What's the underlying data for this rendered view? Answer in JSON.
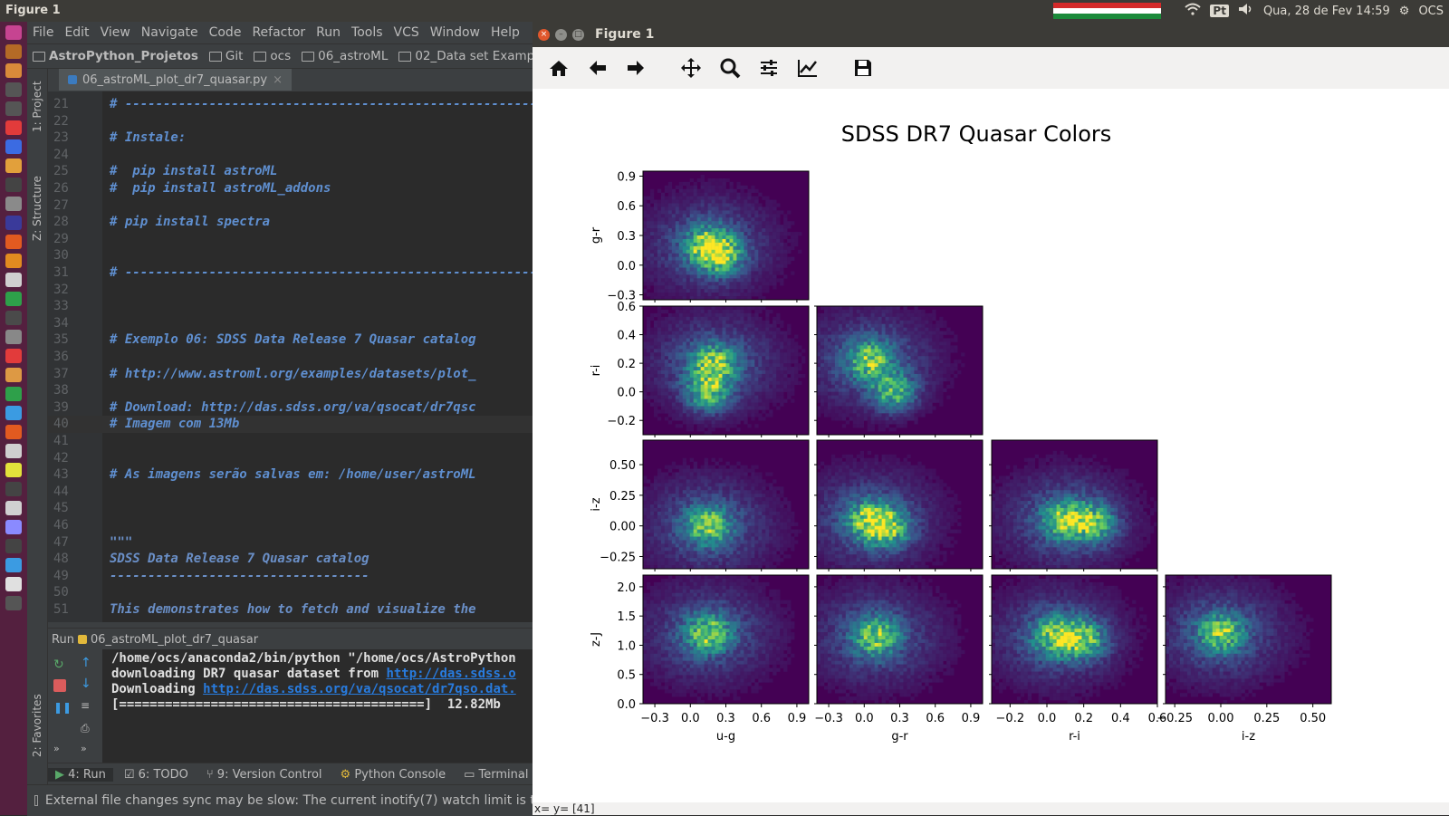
{
  "top_panel": {
    "app_title": "Figure 1",
    "lang": "Pt",
    "datetime": "Qua, 28 de Fev 14:59",
    "user": "OCS",
    "flag_colors": [
      "#d42a2a",
      "#ffffff",
      "#1b8a3a"
    ]
  },
  "launcher": {
    "icon_colors": [
      "#c64491",
      "#b46a26",
      "#d98a3a",
      "#555",
      "#555",
      "#e23b3b",
      "#3b6be2",
      "#e2a03b",
      "#444",
      "#8a8a8a",
      "#3a3a9a",
      "#e25a20",
      "#e28a20",
      "#d0d0d0",
      "#2ea04a",
      "#4a4a4a",
      "#888",
      "#e23b3b",
      "#d94",
      "#2ea04a",
      "#3b9be2",
      "#e25a20",
      "#cfcfcf",
      "#e2e23b",
      "#444",
      "#d0d0d0",
      "#8a8aff",
      "#444",
      "#3b9be2",
      "#e0e0e0",
      "#555"
    ]
  },
  "ide": {
    "menu": [
      "File",
      "Edit",
      "View",
      "Navigate",
      "Code",
      "Refactor",
      "Run",
      "Tools",
      "VCS",
      "Window",
      "Help"
    ],
    "breadcrumb": [
      "AstroPython_Projetos",
      "Git",
      "ocs",
      "06_astroML",
      "02_Data set Examp"
    ],
    "side_labels": {
      "project": "1: Project",
      "structure": "Z: Structure",
      "favorites": "2: Favorites"
    },
    "tab_name": "06_astroML_plot_dr7_quasar.py",
    "code_lines": [
      {
        "n": "21",
        "text": "# ----------------------------------------------------------"
      },
      {
        "n": "22",
        "text": ""
      },
      {
        "n": "23",
        "text": "# Instale:"
      },
      {
        "n": "24",
        "text": ""
      },
      {
        "n": "25",
        "text": "#  pip install astroML"
      },
      {
        "n": "26",
        "text": "#  pip install astroML_addons"
      },
      {
        "n": "27",
        "text": ""
      },
      {
        "n": "28",
        "text": "# pip install spectra"
      },
      {
        "n": "29",
        "text": ""
      },
      {
        "n": "30",
        "text": ""
      },
      {
        "n": "31",
        "text": "# ----------------------------------------------------------"
      },
      {
        "n": "32",
        "text": ""
      },
      {
        "n": "33",
        "text": ""
      },
      {
        "n": "34",
        "text": ""
      },
      {
        "n": "35",
        "text": "# Exemplo 06: SDSS Data Release 7 Quasar catalog"
      },
      {
        "n": "36",
        "text": ""
      },
      {
        "n": "37",
        "text": "# http://www.astroml.org/examples/datasets/plot_"
      },
      {
        "n": "38",
        "text": ""
      },
      {
        "n": "39",
        "text": "# Download: http://das.sdss.org/va/qsocat/dr7qsc"
      },
      {
        "n": "40",
        "text": "# Imagem com 13Mb"
      },
      {
        "n": "41",
        "text": ""
      },
      {
        "n": "42",
        "text": ""
      },
      {
        "n": "43",
        "text": "# As imagens serão salvas em: /home/user/astroML"
      },
      {
        "n": "44",
        "text": ""
      },
      {
        "n": "45",
        "text": ""
      },
      {
        "n": "46",
        "text": ""
      },
      {
        "n": "47",
        "text": "\"\"\""
      },
      {
        "n": "48",
        "text": "SDSS Data Release 7 Quasar catalog"
      },
      {
        "n": "49",
        "text": "----------------------------------"
      },
      {
        "n": "50",
        "text": ""
      },
      {
        "n": "51",
        "text": "This demonstrates how to fetch and visualize the"
      }
    ],
    "run_header": "Run",
    "run_config": "06_astroML_plot_dr7_quasar",
    "console": {
      "line1": "/home/ocs/anaconda2/bin/python \"/home/ocs/AstroPython",
      "line2_prefix": "downloading DR7 quasar dataset from ",
      "line2_link": "http://das.sdss.o",
      "line3_prefix": "Downloading ",
      "line3_link": "http://das.sdss.org/va/qsocat/dr7qso.dat.",
      "line4": "[========================================]  12.82Mb"
    },
    "bottom_tabs": [
      "4: Run",
      "6: TODO",
      "9: Version Control",
      "Python Console",
      "Terminal"
    ],
    "status": "External file changes sync may be slow: The current inotify(7) watch limit is too"
  },
  "figure": {
    "window_title": "Figure 1",
    "status": "x= y= [41]"
  },
  "chart_data": {
    "type": "heatmap",
    "title": "SDSS DR7 Quasar Colors",
    "variables": [
      "u-g",
      "g-r",
      "r-i",
      "i-z",
      "z-J"
    ],
    "x_vars": [
      "u-g",
      "g-r",
      "r-i",
      "i-z"
    ],
    "y_vars": [
      "g-r",
      "r-i",
      "i-z",
      "z-J"
    ],
    "xlims": {
      "u-g": [
        -0.4,
        1.0
      ],
      "g-r": [
        -0.4,
        1.0
      ],
      "r-i": [
        -0.3,
        0.6
      ],
      "i-z": [
        -0.3,
        0.6
      ]
    },
    "ylims": {
      "g-r": [
        -0.35,
        0.95
      ],
      "r-i": [
        -0.3,
        0.6
      ],
      "i-z": [
        -0.35,
        0.7
      ],
      "z-J": [
        0.0,
        2.2
      ]
    },
    "xticks": {
      "u-g": [
        -0.3,
        0.0,
        0.3,
        0.6,
        0.9
      ],
      "g-r": [
        -0.3,
        0.0,
        0.3,
        0.6,
        0.9
      ],
      "r-i": [
        -0.2,
        0.0,
        0.2,
        0.4,
        0.6
      ],
      "i-z": [
        -0.25,
        0.0,
        0.25,
        0.5
      ]
    },
    "yticks": {
      "g-r": [
        -0.3,
        0.0,
        0.3,
        0.6,
        0.9
      ],
      "r-i": [
        -0.2,
        0.0,
        0.2,
        0.4,
        0.6
      ],
      "i-z": [
        -0.25,
        0.0,
        0.25,
        0.5
      ],
      "z-J": [
        0.0,
        0.5,
        1.0,
        1.5,
        2.0
      ]
    },
    "xtick_labels": {
      "u-g": [
        "−0.3",
        "0.0",
        "0.3",
        "0.6",
        "0.9"
      ],
      "g-r": [
        "−0.3",
        "0.0",
        "0.3",
        "0.6",
        "0.9"
      ],
      "r-i": [
        "−0.2",
        "0.0",
        "0.2",
        "0.4",
        "0.6"
      ],
      "i-z": [
        "−0.25",
        "0.00",
        "0.25",
        "0.50"
      ]
    },
    "ytick_labels": {
      "g-r": [
        "−0.3",
        "0.0",
        "0.3",
        "0.6",
        "0.9"
      ],
      "r-i": [
        "−0.2",
        "0.0",
        "0.2",
        "0.4",
        "0.6"
      ],
      "i-z": [
        "−0.25",
        "0.00",
        "0.25",
        "0.50"
      ],
      "z-J": [
        "0.0",
        "0.5",
        "1.0",
        "1.5",
        "2.0"
      ]
    },
    "panels": [
      {
        "x": "u-g",
        "y": "g-r",
        "peaks": [
          [
            0.15,
            0.2
          ],
          [
            0.25,
            0.1
          ]
        ]
      },
      {
        "x": "u-g",
        "y": "r-i",
        "peaks": [
          [
            0.2,
            0.2
          ],
          [
            0.15,
            0.0
          ]
        ]
      },
      {
        "x": "g-r",
        "y": "r-i",
        "peaks": [
          [
            0.05,
            0.22
          ],
          [
            0.25,
            0.0
          ]
        ]
      },
      {
        "x": "u-g",
        "y": "i-z",
        "peaks": [
          [
            0.15,
            0.0
          ]
        ]
      },
      {
        "x": "g-r",
        "y": "i-z",
        "peaks": [
          [
            0.05,
            0.05
          ],
          [
            0.2,
            -0.02
          ]
        ]
      },
      {
        "x": "r-i",
        "y": "i-z",
        "peaks": [
          [
            0.1,
            0.05
          ],
          [
            0.25,
            0.02
          ]
        ]
      },
      {
        "x": "u-g",
        "y": "z-J",
        "peaks": [
          [
            0.15,
            1.2
          ]
        ]
      },
      {
        "x": "g-r",
        "y": "z-J",
        "peaks": [
          [
            0.1,
            1.15
          ]
        ]
      },
      {
        "x": "r-i",
        "y": "z-J",
        "peaks": [
          [
            0.05,
            1.15
          ],
          [
            0.2,
            1.1
          ]
        ]
      },
      {
        "x": "i-z",
        "y": "z-J",
        "peaks": [
          [
            0.0,
            1.2
          ]
        ]
      }
    ],
    "colormap": "viridis",
    "background_color": "#440154"
  }
}
